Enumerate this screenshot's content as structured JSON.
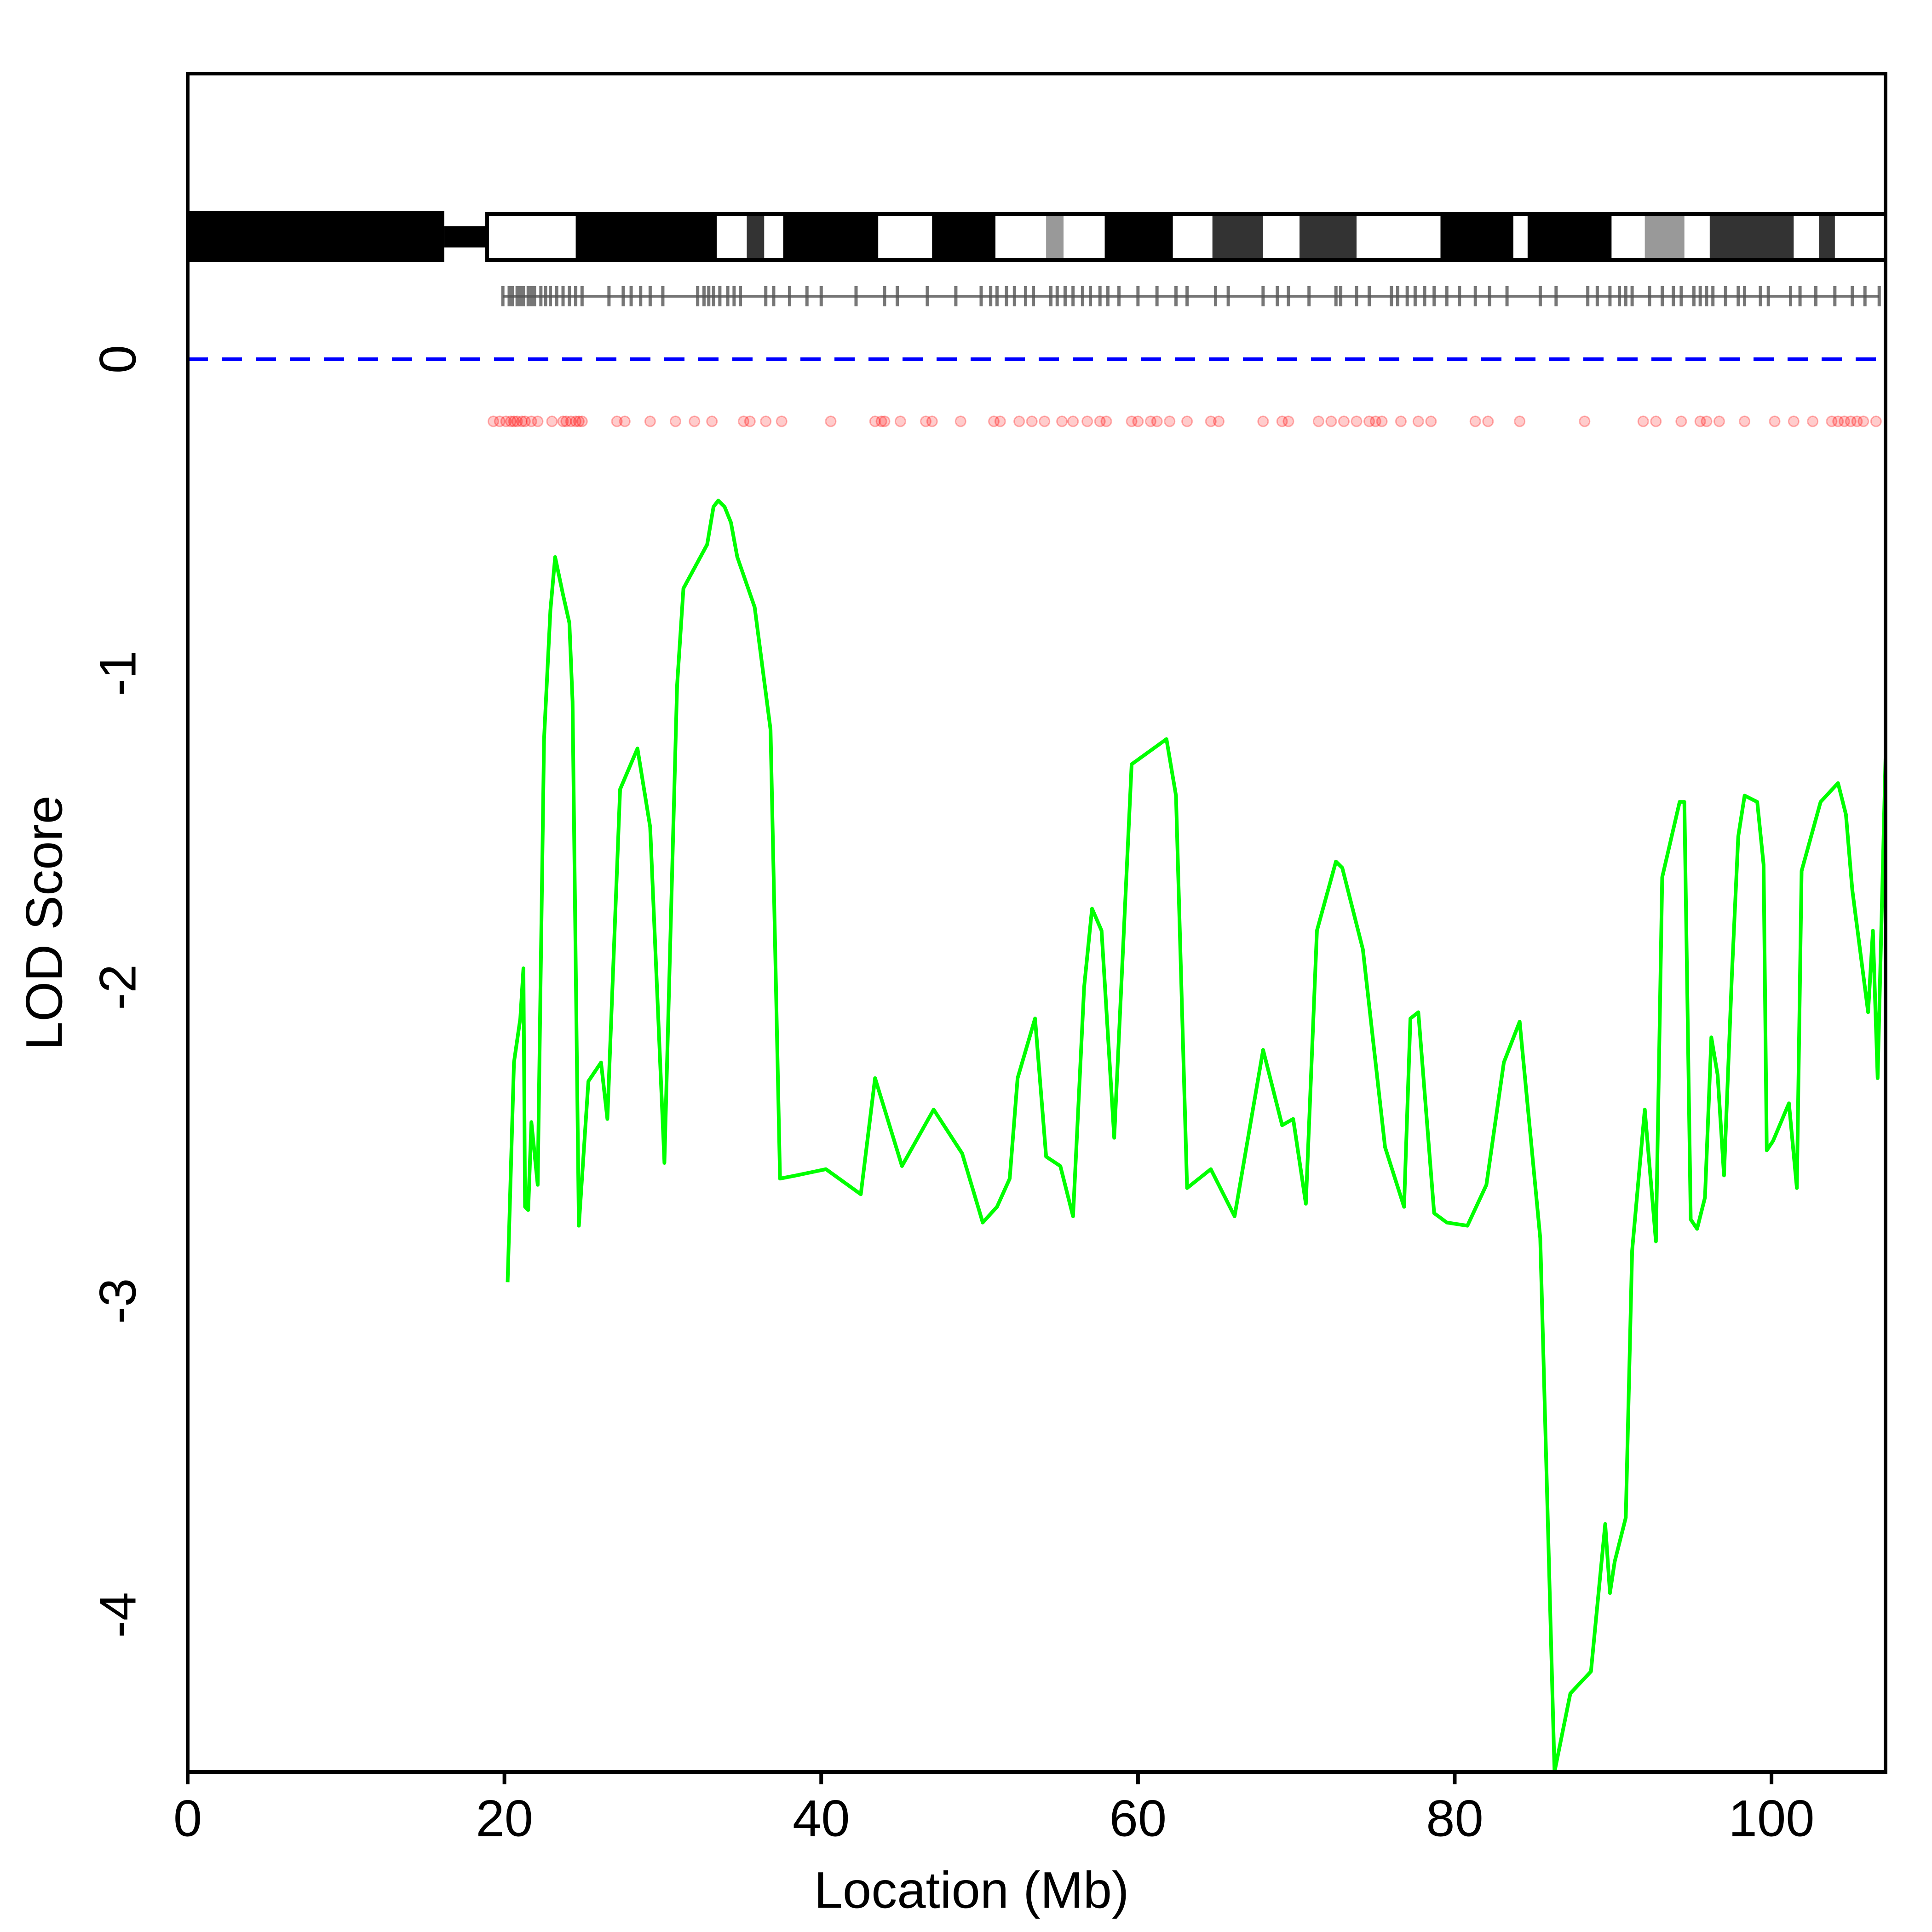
{
  "chart_data": {
    "type": "line",
    "x_label": "Location (Mb)",
    "y_label": "LOD Score",
    "xlim": [
      0,
      107.2
    ],
    "ylim": [
      -4.5,
      0.91
    ],
    "xticks": [
      0,
      20,
      40,
      60,
      80,
      100
    ],
    "yticks": [
      0,
      -1,
      -2,
      -3,
      -4
    ],
    "reference_line": {
      "value": 0,
      "color": "#0000ff"
    },
    "x": [
      20.2,
      20.6,
      21.0,
      21.2,
      21.3,
      21.5,
      21.7,
      22.1,
      22.5,
      22.9,
      23.2,
      23.7,
      24.1,
      24.3,
      24.7,
      25.3,
      26.1,
      26.5,
      27.3,
      28.4,
      29.2,
      30.1,
      30.9,
      31.3,
      32.8,
      33.2,
      33.5,
      33.9,
      34.3,
      34.7,
      35.8,
      36.8,
      37.4,
      38.4,
      40.3,
      42.5,
      43.4,
      45.1,
      47.1,
      48.9,
      50.2,
      51.1,
      51.9,
      52.4,
      53.5,
      54.2,
      55.1,
      55.9,
      56.6,
      57.1,
      57.7,
      58.5,
      59.6,
      61.8,
      62.4,
      63.1,
      64.6,
      66.1,
      67.9,
      69.1,
      69.8,
      70.6,
      71.3,
      72.5,
      72.9,
      74.2,
      75.6,
      76.8,
      77.2,
      77.7,
      78.7,
      79.5,
      80.8,
      82.0,
      83.1,
      84.1,
      85.4,
      86.3,
      87.3,
      88.6,
      89.5,
      89.8,
      90.1,
      90.8,
      91.2,
      92.0,
      92.7,
      93.1,
      94.2,
      94.5,
      94.9,
      95.3,
      95.8,
      96.2,
      96.6,
      97.0,
      97.5,
      97.9,
      98.3,
      99.1,
      99.5,
      99.7,
      100.1,
      101.1,
      101.6,
      101.9,
      103.1,
      104.2,
      104.7,
      105.1,
      106.1,
      106.4,
      106.7,
      106.9,
      107.2
    ],
    "series": [
      {
        "color": "#00ff00",
        "values": [
          -2.94,
          -2.24,
          -2.1,
          -1.94,
          -2.7,
          -2.71,
          -2.43,
          -2.63,
          -1.21,
          -0.8,
          -0.63,
          -0.75,
          -0.84,
          -1.09,
          -2.76,
          -2.3,
          -2.24,
          -2.42,
          -1.37,
          -1.24,
          -1.49,
          -2.56,
          -1.04,
          -0.73,
          -0.59,
          -0.47,
          -0.45,
          -0.47,
          -0.52,
          -0.63,
          -0.79,
          -1.18,
          -2.61,
          -2.6,
          -2.58,
          -2.66,
          -2.29,
          -2.57,
          -2.39,
          -2.53,
          -2.75,
          -2.7,
          -2.61,
          -2.29,
          -2.1,
          -2.54,
          -2.57,
          -2.73,
          -2.0,
          -1.75,
          -1.82,
          -2.48,
          -1.29,
          -1.21,
          -1.39,
          -2.64,
          -2.58,
          -2.73,
          -2.2,
          -2.44,
          -2.42,
          -2.69,
          -1.82,
          -1.6,
          -1.62,
          -1.88,
          -2.51,
          -2.7,
          -2.1,
          -2.08,
          -2.72,
          -2.75,
          -2.76,
          -2.63,
          -2.24,
          -2.11,
          -2.8,
          -4.5,
          -4.25,
          -4.18,
          -3.71,
          -3.93,
          -3.83,
          -3.69,
          -2.84,
          -2.39,
          -2.81,
          -1.65,
          -1.41,
          -1.41,
          -2.74,
          -2.77,
          -2.67,
          -2.16,
          -2.28,
          -2.6,
          -1.96,
          -1.52,
          -1.39,
          -1.41,
          -1.61,
          -2.52,
          -2.49,
          -2.37,
          -2.64,
          -1.63,
          -1.41,
          -1.35,
          -1.45,
          -1.69,
          -2.08,
          -1.82,
          -2.29,
          -1.88,
          -1.27
        ]
      }
    ],
    "ideogram": {
      "arm": [
        0,
        16.2
      ],
      "centromere": [
        16.2,
        18.9
      ],
      "bands": [
        {
          "start": 24.5,
          "end": 33.4,
          "color": "#000000"
        },
        {
          "start": 35.3,
          "end": 36.4,
          "color": "#333333"
        },
        {
          "start": 37.6,
          "end": 43.6,
          "color": "#000000"
        },
        {
          "start": 47.0,
          "end": 51.0,
          "color": "#000000"
        },
        {
          "start": 54.2,
          "end": 55.3,
          "color": "#999999"
        },
        {
          "start": 57.9,
          "end": 62.2,
          "color": "#000000"
        },
        {
          "start": 64.7,
          "end": 67.9,
          "color": "#333333"
        },
        {
          "start": 70.2,
          "end": 73.8,
          "color": "#333333"
        },
        {
          "start": 79.1,
          "end": 83.7,
          "color": "#000000"
        },
        {
          "start": 84.6,
          "end": 89.9,
          "color": "#000000"
        },
        {
          "start": 92.0,
          "end": 94.5,
          "color": "#999999"
        },
        {
          "start": 96.1,
          "end": 101.4,
          "color": "#333333"
        },
        {
          "start": 103.0,
          "end": 104.0,
          "color": "#333333"
        }
      ]
    },
    "markers": [
      19.9,
      20.3,
      20.5,
      20.8,
      21.0,
      21.2,
      21.5,
      21.7,
      21.9,
      22.3,
      22.6,
      22.9,
      23.3,
      23.7,
      24.1,
      24.5,
      24.9,
      26.6,
      27.5,
      28.0,
      28.6,
      29.2,
      30.0,
      32.2,
      32.6,
      32.9,
      33.2,
      33.6,
      34.1,
      34.5,
      34.9,
      36.5,
      37.0,
      38.0,
      39.1,
      40.0,
      42.2,
      44.0,
      44.8,
      46.7,
      48.5,
      50.1,
      50.7,
      51.1,
      51.7,
      52.2,
      52.9,
      53.4,
      54.5,
      54.9,
      55.4,
      55.9,
      56.5,
      57.0,
      57.6,
      58.1,
      58.8,
      60.0,
      61.2,
      62.4,
      63.1,
      64.9,
      65.7,
      67.9,
      68.8,
      69.5,
      70.8,
      72.5,
      72.8,
      73.8,
      74.6,
      76.0,
      76.4,
      77.0,
      77.5,
      78.1,
      78.7,
      79.5,
      80.3,
      81.3,
      82.2,
      83.3,
      85.4,
      86.4,
      88.4,
      89.0,
      89.8,
      90.4,
      90.8,
      91.2,
      92.3,
      93.1,
      93.8,
      94.3,
      95.1,
      95.5,
      95.9,
      96.3,
      97.1,
      97.9,
      98.3,
      99.3,
      99.8,
      101.2,
      101.8,
      102.8,
      104.0,
      105.1,
      105.9,
      106.8
    ],
    "marker_color": "#555555",
    "variants": [
      19.3,
      19.7,
      20.1,
      20.4,
      20.6,
      20.8,
      21.1,
      21.3,
      21.7,
      22.1,
      23.0,
      23.7,
      23.9,
      24.2,
      24.5,
      24.7,
      24.9,
      27.1,
      27.6,
      29.2,
      30.8,
      32.0,
      33.1,
      35.1,
      35.5,
      36.5,
      37.5,
      40.6,
      43.4,
      43.8,
      44.0,
      45.0,
      46.6,
      47.0,
      48.8,
      50.9,
      51.3,
      52.5,
      53.3,
      54.1,
      55.2,
      55.9,
      56.8,
      57.6,
      58.0,
      59.6,
      60.0,
      60.8,
      61.2,
      62.0,
      63.1,
      64.6,
      65.1,
      67.9,
      69.1,
      69.5,
      71.4,
      72.2,
      73.0,
      73.8,
      74.6,
      75.0,
      75.4,
      76.6,
      77.7,
      78.5,
      81.3,
      82.1,
      84.1,
      88.2,
      91.9,
      92.7,
      94.3,
      95.5,
      95.9,
      96.7,
      98.3,
      100.2,
      101.4,
      102.6,
      103.8,
      104.2,
      104.6,
      105.0,
      105.4,
      105.8,
      106.6
    ],
    "variant_color": "#ff0000"
  }
}
